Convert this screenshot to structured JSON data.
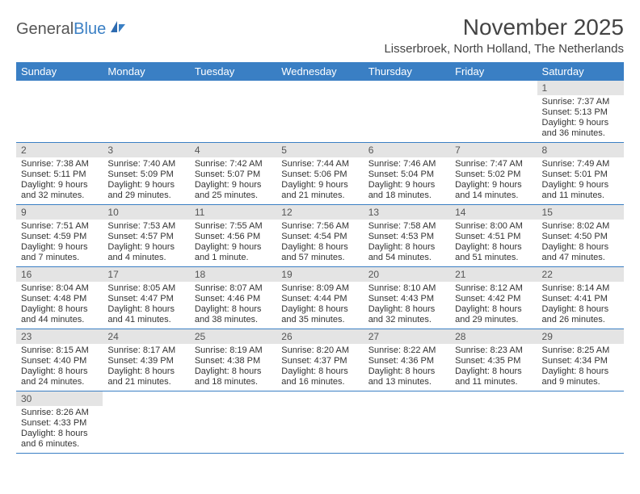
{
  "logo": {
    "text1": "General",
    "text2": "Blue"
  },
  "header": {
    "title": "November 2025",
    "location": "Lisserbroek, North Holland, The Netherlands"
  },
  "colors": {
    "header_bg": "#3a7fc4",
    "header_text": "#ffffff",
    "daynum_bg": "#e4e4e4",
    "row_border": "#3a7fc4"
  },
  "dayNames": [
    "Sunday",
    "Monday",
    "Tuesday",
    "Wednesday",
    "Thursday",
    "Friday",
    "Saturday"
  ],
  "weeks": [
    [
      null,
      null,
      null,
      null,
      null,
      null,
      {
        "n": "1",
        "sr": "7:37 AM",
        "ss": "5:13 PM",
        "dl": "9 hours and 36 minutes."
      }
    ],
    [
      {
        "n": "2",
        "sr": "7:38 AM",
        "ss": "5:11 PM",
        "dl": "9 hours and 32 minutes."
      },
      {
        "n": "3",
        "sr": "7:40 AM",
        "ss": "5:09 PM",
        "dl": "9 hours and 29 minutes."
      },
      {
        "n": "4",
        "sr": "7:42 AM",
        "ss": "5:07 PM",
        "dl": "9 hours and 25 minutes."
      },
      {
        "n": "5",
        "sr": "7:44 AM",
        "ss": "5:06 PM",
        "dl": "9 hours and 21 minutes."
      },
      {
        "n": "6",
        "sr": "7:46 AM",
        "ss": "5:04 PM",
        "dl": "9 hours and 18 minutes."
      },
      {
        "n": "7",
        "sr": "7:47 AM",
        "ss": "5:02 PM",
        "dl": "9 hours and 14 minutes."
      },
      {
        "n": "8",
        "sr": "7:49 AM",
        "ss": "5:01 PM",
        "dl": "9 hours and 11 minutes."
      }
    ],
    [
      {
        "n": "9",
        "sr": "7:51 AM",
        "ss": "4:59 PM",
        "dl": "9 hours and 7 minutes."
      },
      {
        "n": "10",
        "sr": "7:53 AM",
        "ss": "4:57 PM",
        "dl": "9 hours and 4 minutes."
      },
      {
        "n": "11",
        "sr": "7:55 AM",
        "ss": "4:56 PM",
        "dl": "9 hours and 1 minute."
      },
      {
        "n": "12",
        "sr": "7:56 AM",
        "ss": "4:54 PM",
        "dl": "8 hours and 57 minutes."
      },
      {
        "n": "13",
        "sr": "7:58 AM",
        "ss": "4:53 PM",
        "dl": "8 hours and 54 minutes."
      },
      {
        "n": "14",
        "sr": "8:00 AM",
        "ss": "4:51 PM",
        "dl": "8 hours and 51 minutes."
      },
      {
        "n": "15",
        "sr": "8:02 AM",
        "ss": "4:50 PM",
        "dl": "8 hours and 47 minutes."
      }
    ],
    [
      {
        "n": "16",
        "sr": "8:04 AM",
        "ss": "4:48 PM",
        "dl": "8 hours and 44 minutes."
      },
      {
        "n": "17",
        "sr": "8:05 AM",
        "ss": "4:47 PM",
        "dl": "8 hours and 41 minutes."
      },
      {
        "n": "18",
        "sr": "8:07 AM",
        "ss": "4:46 PM",
        "dl": "8 hours and 38 minutes."
      },
      {
        "n": "19",
        "sr": "8:09 AM",
        "ss": "4:44 PM",
        "dl": "8 hours and 35 minutes."
      },
      {
        "n": "20",
        "sr": "8:10 AM",
        "ss": "4:43 PM",
        "dl": "8 hours and 32 minutes."
      },
      {
        "n": "21",
        "sr": "8:12 AM",
        "ss": "4:42 PM",
        "dl": "8 hours and 29 minutes."
      },
      {
        "n": "22",
        "sr": "8:14 AM",
        "ss": "4:41 PM",
        "dl": "8 hours and 26 minutes."
      }
    ],
    [
      {
        "n": "23",
        "sr": "8:15 AM",
        "ss": "4:40 PM",
        "dl": "8 hours and 24 minutes."
      },
      {
        "n": "24",
        "sr": "8:17 AM",
        "ss": "4:39 PM",
        "dl": "8 hours and 21 minutes."
      },
      {
        "n": "25",
        "sr": "8:19 AM",
        "ss": "4:38 PM",
        "dl": "8 hours and 18 minutes."
      },
      {
        "n": "26",
        "sr": "8:20 AM",
        "ss": "4:37 PM",
        "dl": "8 hours and 16 minutes."
      },
      {
        "n": "27",
        "sr": "8:22 AM",
        "ss": "4:36 PM",
        "dl": "8 hours and 13 minutes."
      },
      {
        "n": "28",
        "sr": "8:23 AM",
        "ss": "4:35 PM",
        "dl": "8 hours and 11 minutes."
      },
      {
        "n": "29",
        "sr": "8:25 AM",
        "ss": "4:34 PM",
        "dl": "8 hours and 9 minutes."
      }
    ],
    [
      {
        "n": "30",
        "sr": "8:26 AM",
        "ss": "4:33 PM",
        "dl": "8 hours and 6 minutes."
      },
      null,
      null,
      null,
      null,
      null,
      null
    ]
  ],
  "labels": {
    "sunrise": "Sunrise: ",
    "sunset": "Sunset: ",
    "daylight": "Daylight: "
  }
}
